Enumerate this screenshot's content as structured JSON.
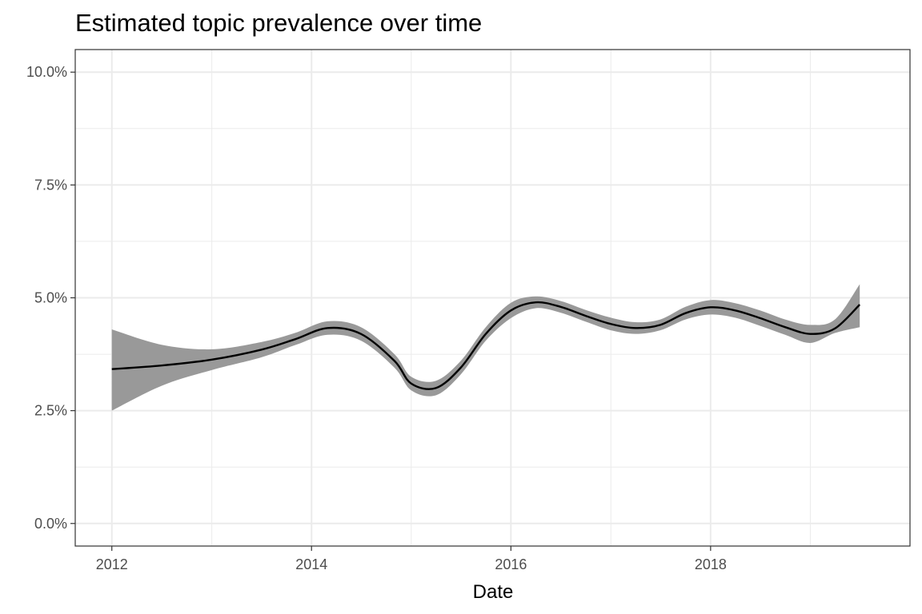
{
  "chart_data": {
    "type": "line",
    "title": "Estimated topic prevalence over time",
    "xlabel": "Date",
    "ylabel": "",
    "x_ticks": [
      "2012",
      "2014",
      "2016",
      "2018"
    ],
    "y_ticks": [
      "0.0%",
      "2.5%",
      "5.0%",
      "7.5%",
      "10.0%"
    ],
    "y_tick_values": [
      0,
      2.5,
      5.0,
      7.5,
      10.0
    ],
    "xlim": [
      "2011-08-20",
      "2020-01-01"
    ],
    "ylim": [
      -0.5,
      10.5
    ],
    "grid": true,
    "colors": {
      "line": "#000000",
      "ribbon": "#999999",
      "grid": "#ebebeb",
      "panel_border": "#333333"
    },
    "series": [
      {
        "x": [
          "2012-01-01",
          "2012-07-01",
          "2013-01-01",
          "2013-07-01",
          "2013-11-01",
          "2014-03-01",
          "2014-07-01",
          "2014-11-01",
          "2015-01-01",
          "2015-04-01",
          "2015-07-01",
          "2015-10-01",
          "2016-01-01",
          "2016-04-01",
          "2016-07-01",
          "2016-10-01",
          "2017-01-01",
          "2017-04-01",
          "2017-07-01",
          "2017-10-01",
          "2018-01-01",
          "2018-04-01",
          "2018-07-01",
          "2018-10-01",
          "2019-01-01",
          "2019-04-01",
          "2019-07-01"
        ],
        "y": [
          3.42,
          3.5,
          3.63,
          3.85,
          4.08,
          4.33,
          4.2,
          3.6,
          3.1,
          3.0,
          3.45,
          4.2,
          4.72,
          4.9,
          4.8,
          4.6,
          4.42,
          4.33,
          4.4,
          4.66,
          4.79,
          4.72,
          4.55,
          4.35,
          4.2,
          4.32,
          4.85
        ],
        "lower": [
          2.5,
          3.05,
          3.4,
          3.68,
          3.95,
          4.18,
          4.05,
          3.45,
          2.95,
          2.84,
          3.3,
          4.05,
          4.55,
          4.77,
          4.67,
          4.47,
          4.28,
          4.2,
          4.28,
          4.52,
          4.63,
          4.56,
          4.38,
          4.18,
          4.0,
          4.22,
          4.35
        ],
        "upper": [
          4.3,
          3.96,
          3.86,
          4.02,
          4.22,
          4.48,
          4.35,
          3.75,
          3.25,
          3.16,
          3.6,
          4.35,
          4.89,
          5.03,
          4.93,
          4.73,
          4.56,
          4.46,
          4.52,
          4.8,
          4.95,
          4.88,
          4.72,
          4.52,
          4.4,
          4.52,
          5.3
        ]
      }
    ]
  }
}
